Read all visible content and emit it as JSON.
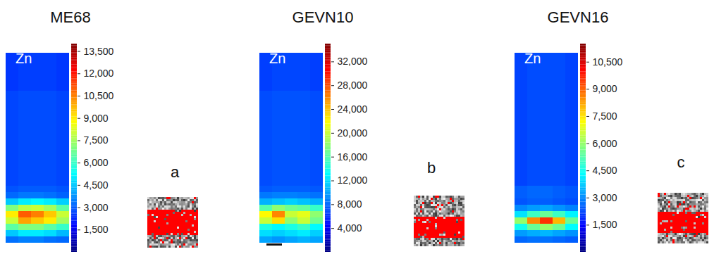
{
  "chart_data": [
    {
      "type": "heatmap",
      "title": "ME68",
      "label": "Zn",
      "cells": [
        [
          2500,
          2600,
          2600,
          2600,
          2500
        ],
        [
          2500,
          2600,
          2600,
          2600,
          2500
        ],
        [
          2500,
          2600,
          2600,
          2600,
          2500
        ],
        [
          2500,
          2600,
          2600,
          2600,
          2500
        ],
        [
          2500,
          2600,
          2600,
          2600,
          2500
        ],
        [
          2500,
          2600,
          2600,
          2600,
          2500
        ],
        [
          2700,
          2800,
          2800,
          2800,
          2700
        ],
        [
          2700,
          2800,
          2800,
          2800,
          2700
        ],
        [
          2700,
          2800,
          2800,
          2800,
          2700
        ],
        [
          2700,
          2800,
          2800,
          2800,
          2700
        ],
        [
          2700,
          2800,
          2800,
          2800,
          2700
        ],
        [
          2700,
          2800,
          2800,
          2800,
          2700
        ],
        [
          2700,
          2800,
          2800,
          2800,
          2700
        ],
        [
          2700,
          2800,
          2800,
          2800,
          2700
        ],
        [
          2700,
          2800,
          2800,
          2800,
          2700
        ],
        [
          2700,
          2800,
          2800,
          2800,
          2700
        ],
        [
          2700,
          2800,
          2800,
          2800,
          2700
        ],
        [
          2700,
          2800,
          2800,
          2800,
          2700
        ],
        [
          2700,
          2800,
          2800,
          2800,
          2700
        ],
        [
          2700,
          2800,
          2800,
          2800,
          2700
        ],
        [
          2700,
          2800,
          2800,
          2800,
          2700
        ],
        [
          2900,
          3000,
          3000,
          3000,
          2900
        ],
        [
          3200,
          3400,
          3400,
          3300,
          3100
        ],
        [
          4500,
          5000,
          5200,
          5000,
          4600
        ],
        [
          7000,
          7800,
          8000,
          7500,
          6500
        ],
        [
          9000,
          11000,
          10500,
          9500,
          8000
        ],
        [
          8000,
          10000,
          9500,
          9000,
          7500
        ],
        [
          6500,
          7000,
          7000,
          6500,
          6000
        ],
        [
          4500,
          5000,
          5000,
          4800,
          4300
        ],
        [
          3300,
          3500,
          3500,
          3300,
          3200
        ]
      ],
      "colorbar": {
        "range": [
          0,
          14000
        ],
        "ticks": [
          {
            "value": 1500,
            "label": "1,500"
          },
          {
            "value": 3000,
            "label": "3,000"
          },
          {
            "value": 4500,
            "label": "4,500"
          },
          {
            "value": 6000,
            "label": "6,000"
          },
          {
            "value": 7500,
            "label": "7,500"
          },
          {
            "value": 9000,
            "label": "9,000"
          },
          {
            "value": 10500,
            "label": "10,500"
          },
          {
            "value": 12000,
            "label": "12,000"
          },
          {
            "value": 13500,
            "label": "13,500"
          }
        ]
      },
      "inset": {
        "label": "a",
        "mask": [
          0,
          0,
          0,
          0,
          0,
          0,
          1,
          1,
          1,
          1,
          1,
          1,
          1,
          1,
          1,
          1,
          1,
          1,
          0,
          0,
          0,
          0,
          0,
          0
        ]
      }
    },
    {
      "type": "heatmap",
      "title": "GEVN10",
      "label": "Zn",
      "cells": [
        [
          6500,
          6800,
          6800,
          6800,
          6500
        ],
        [
          6500,
          6800,
          6800,
          6800,
          6500
        ],
        [
          6500,
          6800,
          6800,
          6800,
          6500
        ],
        [
          6500,
          6800,
          6800,
          6800,
          6500
        ],
        [
          6500,
          6800,
          6800,
          6800,
          6500
        ],
        [
          6500,
          6800,
          6800,
          6800,
          6500
        ],
        [
          7000,
          7200,
          7200,
          7200,
          7000
        ],
        [
          7000,
          7200,
          7200,
          7200,
          7000
        ],
        [
          7000,
          7200,
          7200,
          7200,
          7000
        ],
        [
          7000,
          7200,
          7200,
          7200,
          7000
        ],
        [
          7000,
          7200,
          7200,
          7200,
          7000
        ],
        [
          7000,
          7200,
          7200,
          7200,
          7000
        ],
        [
          7000,
          7200,
          7200,
          7200,
          7000
        ],
        [
          7000,
          7200,
          7200,
          7200,
          7000
        ],
        [
          7000,
          7200,
          7200,
          7200,
          7000
        ],
        [
          7000,
          7200,
          7200,
          7200,
          7000
        ],
        [
          7000,
          7200,
          7200,
          7200,
          7000
        ],
        [
          7000,
          7200,
          7200,
          7200,
          7000
        ],
        [
          7000,
          7200,
          7200,
          7200,
          7000
        ],
        [
          7000,
          7200,
          7200,
          7200,
          7000
        ],
        [
          7000,
          7200,
          7200,
          7200,
          7000
        ],
        [
          7400,
          7600,
          7600,
          7600,
          7400
        ],
        [
          8500,
          8800,
          8800,
          8600,
          8300
        ],
        [
          10500,
          11000,
          11500,
          11000,
          10500
        ],
        [
          16000,
          18000,
          17000,
          16500,
          15000
        ],
        [
          22000,
          26000,
          20000,
          21000,
          18000
        ],
        [
          20000,
          23000,
          18000,
          20000,
          17000
        ],
        [
          14000,
          13000,
          14000,
          15000,
          13000
        ],
        [
          12000,
          11500,
          12000,
          12500,
          11500
        ],
        [
          10000,
          9500,
          10000,
          10500,
          10000
        ]
      ],
      "colorbar": {
        "range": [
          0,
          35000
        ],
        "ticks": [
          {
            "value": 4000,
            "label": "4,000"
          },
          {
            "value": 8000,
            "label": "8,000"
          },
          {
            "value": 12000,
            "label": "12,000"
          },
          {
            "value": 16000,
            "label": "16,000"
          },
          {
            "value": 20000,
            "label": "20,000"
          },
          {
            "value": 24000,
            "label": "24,000"
          },
          {
            "value": 28000,
            "label": "28,000"
          },
          {
            "value": 32000,
            "label": "32,000"
          }
        ]
      },
      "inset": {
        "label": "b",
        "mask": [
          0,
          0,
          0,
          0,
          0,
          0,
          0,
          0,
          0,
          0,
          1,
          1,
          1,
          1,
          1,
          1,
          1,
          1,
          1,
          1,
          0,
          0,
          0,
          0
        ]
      }
    },
    {
      "type": "heatmap",
      "title": "GEVN16",
      "label": "Zn",
      "cells": [
        [
          2200,
          2300,
          2300,
          2300,
          2200
        ],
        [
          2200,
          2300,
          2300,
          2300,
          2200
        ],
        [
          2200,
          2300,
          2300,
          2300,
          2200
        ],
        [
          2200,
          2300,
          2300,
          2300,
          2200
        ],
        [
          2200,
          2300,
          2300,
          2300,
          2200
        ],
        [
          2200,
          2300,
          2300,
          2300,
          2200
        ],
        [
          2200,
          2300,
          2300,
          2300,
          2200
        ],
        [
          2200,
          2300,
          2300,
          2300,
          2200
        ],
        [
          2200,
          2300,
          2300,
          2300,
          2200
        ],
        [
          2200,
          2300,
          2300,
          2300,
          2200
        ],
        [
          2200,
          2300,
          2300,
          2300,
          2200
        ],
        [
          2200,
          2300,
          2300,
          2300,
          2200
        ],
        [
          2200,
          2300,
          2300,
          2300,
          2200
        ],
        [
          2200,
          2300,
          2300,
          2300,
          2200
        ],
        [
          2200,
          2300,
          2300,
          2300,
          2200
        ],
        [
          2200,
          2300,
          2300,
          2300,
          2200
        ],
        [
          2200,
          2300,
          2300,
          2300,
          2200
        ],
        [
          2200,
          2300,
          2300,
          2300,
          2200
        ],
        [
          2200,
          2300,
          2300,
          2300,
          2200
        ],
        [
          2200,
          2300,
          2300,
          2300,
          2200
        ],
        [
          2200,
          2300,
          2300,
          2300,
          2200
        ],
        [
          2500,
          2600,
          2600,
          2500,
          2400
        ],
        [
          2500,
          2600,
          2600,
          2500,
          2400
        ],
        [
          2400,
          2500,
          2500,
          2400,
          2300
        ],
        [
          3000,
          3200,
          3300,
          3100,
          2900
        ],
        [
          4000,
          5000,
          5500,
          5000,
          4200
        ],
        [
          6000,
          8500,
          9500,
          8000,
          5500
        ],
        [
          4500,
          5500,
          6000,
          5500,
          4300
        ],
        [
          3200,
          3400,
          3500,
          3300,
          3100
        ],
        [
          2600,
          2700,
          2700,
          2600,
          2500
        ]
      ],
      "colorbar": {
        "range": [
          0,
          11500
        ],
        "ticks": [
          {
            "value": 1500,
            "label": "1,500"
          },
          {
            "value": 3000,
            "label": "3,000"
          },
          {
            "value": 4500,
            "label": "4,500"
          },
          {
            "value": 6000,
            "label": "6,000"
          },
          {
            "value": 7500,
            "label": "7,500"
          },
          {
            "value": 9000,
            "label": "9,000"
          },
          {
            "value": 10500,
            "label": "10,500"
          }
        ]
      },
      "inset": {
        "label": "c",
        "mask": [
          0,
          0,
          0,
          0,
          0,
          0,
          0,
          0,
          0,
          1,
          1,
          1,
          1,
          1,
          1,
          1,
          1,
          1,
          1,
          0,
          0,
          0,
          0,
          0
        ]
      }
    }
  ]
}
